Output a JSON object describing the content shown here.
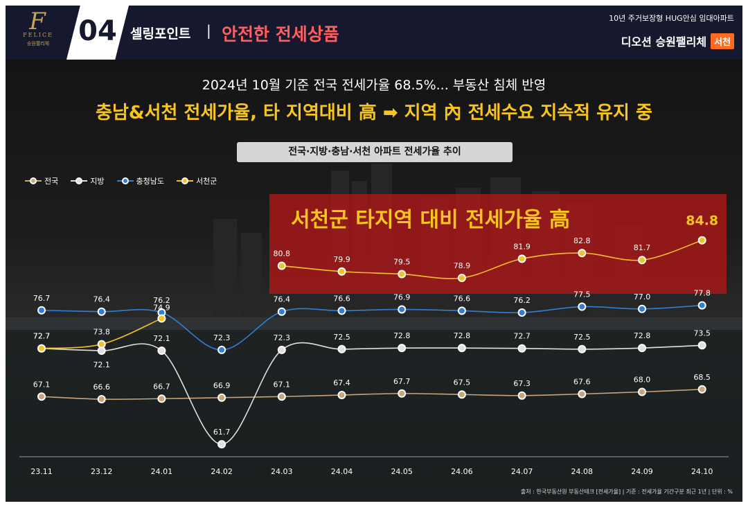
{
  "header": {
    "number": "04",
    "section": "셀링포인트",
    "separator": "|",
    "title": "안전한 전세상품",
    "right_top": "10년 주거보장형 HUG안심 임대아파트",
    "right_name": "디오션 승원팰리체",
    "right_badge": "서천",
    "logo_mark": "F",
    "logo_word": "FELICE",
    "logo_sub": "승원팰리체"
  },
  "headline": {
    "sub": "2024년 10월 기준 전국 전세가율 68.5%... 부동산 침체 반영",
    "main": "충남&서천 전세가율, 타 지역대비 高 ➡ 지역 內 전세수요 지속적 유지 중"
  },
  "chart_label": "전국·지방·충남·서천 아파트 전세가율 추이",
  "highlight": "서천군 타지역 대비 전세가율 高",
  "source": "출처 : 한국부동산원 부동산테크 [전세가율] | 기준 : 전세가율 기간구분 최근 1년 | 단위 : %",
  "colors": {
    "nation": "#c9a57a",
    "regional": "#e0e0e0",
    "chungnam": "#2f7fd6",
    "seocheon": "#f3c12a"
  },
  "chart_data": {
    "type": "line",
    "categories": [
      "23.11",
      "23.12",
      "24.01",
      "24.02",
      "24.03",
      "24.04",
      "24.05",
      "24.06",
      "24.07",
      "24.08",
      "24.09",
      "24.10"
    ],
    "series": [
      {
        "name": "전국",
        "values": [
          67.1,
          66.6,
          66.7,
          66.9,
          67.1,
          67.4,
          67.7,
          67.5,
          67.3,
          67.6,
          68.0,
          68.5
        ]
      },
      {
        "name": "지방",
        "values": [
          72.7,
          72.1,
          72.1,
          61.7,
          72.3,
          72.5,
          72.8,
          72.8,
          72.7,
          72.5,
          72.8,
          73.5
        ]
      },
      {
        "name": "충청남도",
        "values": [
          76.7,
          76.4,
          76.2,
          72.3,
          76.4,
          76.6,
          76.9,
          76.6,
          76.2,
          77.5,
          77.0,
          77.8
        ]
      },
      {
        "name": "서천군",
        "values": [
          72.7,
          73.8,
          74.9,
          null,
          80.8,
          79.9,
          79.5,
          78.9,
          81.9,
          82.8,
          81.7,
          84.8
        ]
      }
    ],
    "legend_position": "top-left",
    "grid": false
  }
}
